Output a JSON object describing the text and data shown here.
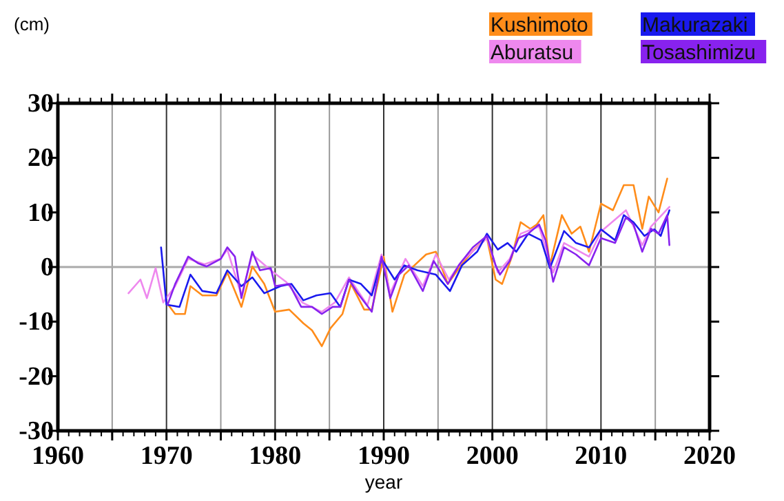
{
  "chart_data": {
    "type": "line",
    "xlabel": "year",
    "ylabel": "(cm)",
    "xlim": [
      1960,
      2020
    ],
    "ylim": [
      -30,
      30
    ],
    "xticks": [
      1960,
      {
        "value": 1965,
        "label": null
      },
      1970,
      {
        "value": 1975,
        "label": null
      },
      1980,
      {
        "value": 1985,
        "label": null
      },
      1990,
      {
        "value": 1995,
        "label": null
      },
      2000,
      {
        "value": 2005,
        "label": null
      },
      2010,
      {
        "value": 2015,
        "label": null
      },
      2020
    ],
    "yticks": [
      -30,
      -20,
      -10,
      0,
      10,
      20,
      30
    ],
    "grid": "x",
    "legend": "top right",
    "line_style": "solid",
    "ref_lines": [
      {
        "axis": "y",
        "value": 0,
        "label": null,
        "color": "#aaaaaa"
      }
    ],
    "series": [
      {
        "name": "Kushimoto",
        "color": "#ff8c1a",
        "x": [
          1970,
          1970.8,
          1971.7,
          1972.2,
          1973.3,
          1974.6,
          1975.6,
          1976.9,
          1977.9,
          1979,
          1980,
          1981.3,
          1982.6,
          1983.4,
          1984.3,
          1985.1,
          1986.2,
          1987,
          1988.2,
          1988.9,
          1990,
          1990.8,
          1991.9,
          1993.9,
          1994.8,
          1995.9,
          1997,
          1998.3,
          1999.5,
          2000.3,
          2000.9,
          2001.8,
          2002.6,
          2003.5,
          2004.1,
          2004.7,
          2005.3,
          2006.4,
          2007.3,
          2008.1,
          2008.9,
          2010,
          2011.1,
          2012.1,
          2013,
          2013.8,
          2014.4,
          2015.3,
          2016.1
        ],
        "values": [
          -6.5,
          -8.6,
          -8.6,
          -3.5,
          -5.2,
          -5.2,
          -1.0,
          -7.3,
          0.1,
          -3.1,
          -8.2,
          -7.8,
          -10.3,
          -11.6,
          -14.5,
          -11.2,
          -8.6,
          -3.1,
          -7.8,
          -7.8,
          1.9,
          -8.2,
          -1.4,
          2.3,
          2.8,
          -3.1,
          0,
          3.2,
          5.3,
          -2.3,
          -3.1,
          1.9,
          8.2,
          7.0,
          7.8,
          9.5,
          0.3,
          9.5,
          6.1,
          7.4,
          2.8,
          11.6,
          10.4,
          15.0,
          15.0,
          7.0,
          12.9,
          10.0,
          16.2
        ]
      },
      {
        "name": "Aburatsu",
        "color": "#ee88ee",
        "x": [
          1966.5,
          1967.6,
          1968.2,
          1969,
          1969.7,
          1970.8,
          1972,
          1973.5,
          1975,
          1975.6,
          1976.9,
          1977.9,
          1979.6,
          1981,
          1982.5,
          1984.3,
          1985.5,
          1986.8,
          1988.5,
          1989.8,
          1990.6,
          1992,
          1993.6,
          1994.8,
          1996,
          1997.2,
          1998.6,
          1999.5,
          2000.5,
          2001.6,
          2002.6,
          2004.3,
          2005.6,
          2006.6,
          2008.9,
          2010,
          2012.3,
          2013.8,
          2014.6,
          2016.3
        ],
        "values": [
          -4.8,
          -2.3,
          -5.7,
          -0.2,
          -6.5,
          -3.5,
          1.5,
          0.5,
          1.5,
          3.2,
          -5.2,
          2.3,
          -0.6,
          -2.7,
          -6.5,
          -8.2,
          -6.5,
          -1.9,
          -7.0,
          2.3,
          -4.8,
          1.5,
          -3.5,
          2.3,
          -2.3,
          1.1,
          3.6,
          5.3,
          -1.0,
          1.5,
          6.1,
          7.4,
          -1.0,
          4.4,
          1.9,
          6.5,
          10.4,
          4.0,
          7.4,
          11.0
        ]
      },
      {
        "name": "Makurazaki",
        "color": "#1a1aee",
        "x": [
          1969.5,
          1970,
          1971.2,
          1972.2,
          1973.3,
          1974.6,
          1975.6,
          1976.9,
          1977.9,
          1979,
          1980.5,
          1981.5,
          1982.6,
          1983.8,
          1985.1,
          1986,
          1986.8,
          1987.9,
          1988.9,
          1989.8,
          1991,
          1991.9,
          1993.1,
          1994.8,
          1996.1,
          1997.2,
          1998.6,
          1999.5,
          2000.5,
          2001.4,
          2002.2,
          2003.3,
          2004.5,
          2005.3,
          2006.6,
          2007.7,
          2008.9,
          2010,
          2011.3,
          2012.1,
          2013,
          2014,
          2014.9,
          2015.5,
          2016.3
        ],
        "values": [
          3.6,
          -6.9,
          -7.3,
          -1.4,
          -4.4,
          -4.8,
          -0.6,
          -3.5,
          -1.9,
          -4.8,
          -3.5,
          -3.1,
          -6.1,
          -5.2,
          -4.8,
          -7.3,
          -2.3,
          -3.1,
          -5.2,
          1.5,
          -2.3,
          0.3,
          -0.6,
          -1.4,
          -4.4,
          0.3,
          2.8,
          6.1,
          3.2,
          4.4,
          2.8,
          6.1,
          4.9,
          -0.2,
          6.6,
          4.4,
          3.6,
          6.9,
          4.9,
          9.5,
          8.2,
          5.7,
          6.9,
          5.7,
          10.4
        ]
      },
      {
        "name": "Tosashimizu",
        "color": "#8822ee",
        "x": [
          1970.1,
          1970.8,
          1972,
          1972.9,
          1973.7,
          1975,
          1975.6,
          1976.3,
          1976.9,
          1977.9,
          1978.6,
          1979.6,
          1980,
          1981.3,
          1982.4,
          1983.4,
          1984.3,
          1985.3,
          1986,
          1986.8,
          1987.6,
          1988.9,
          1989.8,
          1990.6,
          1991.4,
          1992.3,
          1993.6,
          1994.6,
          1995.9,
          1996.9,
          1998.2,
          1999.5,
          2000.3,
          2000.7,
          2001.6,
          2002.4,
          2003.3,
          2004.3,
          2004.9,
          2005.6,
          2006.6,
          2007.7,
          2008.9,
          2010,
          2011.3,
          2012.3,
          2013,
          2013.8,
          2014.6,
          2015.3,
          2016.1,
          2016.3
        ],
        "values": [
          -6.9,
          -3.1,
          1.9,
          0.7,
          0.1,
          1.5,
          3.6,
          1.9,
          -5.7,
          2.8,
          -0.6,
          -0.2,
          -3.5,
          -3.1,
          -7.3,
          -7.3,
          -8.6,
          -7.3,
          -7.3,
          -2.3,
          -4.8,
          -8.2,
          1.9,
          -5.7,
          -1.4,
          0.3,
          -4.4,
          1.1,
          -3.1,
          0.3,
          3.6,
          5.7,
          0.3,
          -1.4,
          1.1,
          5.3,
          6.1,
          7.8,
          4.9,
          -2.7,
          3.6,
          2.3,
          0.3,
          5.3,
          4.4,
          9.1,
          7.8,
          2.8,
          7.0,
          6.1,
          9.5,
          4.0
        ]
      }
    ]
  }
}
